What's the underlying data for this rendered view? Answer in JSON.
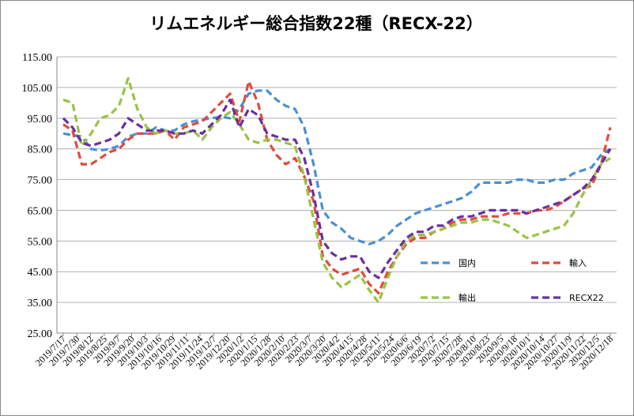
{
  "chart_data": {
    "type": "line",
    "title": "リムエネルギー総合指数22種（RECX-22）",
    "xlabel": "",
    "ylabel": "",
    "ylim": [
      25,
      115
    ],
    "yticks": [
      "25.00",
      "35.00",
      "45.00",
      "55.00",
      "65.00",
      "75.00",
      "85.00",
      "95.00",
      "105.00",
      "115.00"
    ],
    "xticks": [
      "2019/7/17",
      "2019/7/30",
      "2019/8/12",
      "2019/8/25",
      "2019/9/7",
      "2019/9/20",
      "2019/10/3",
      "2019/10/16",
      "2019/10/29",
      "2019/11/11",
      "2019/11/24",
      "2019/12/7",
      "2019/12/20",
      "2020/1/2",
      "2020/1/15",
      "2020/1/28",
      "2020/2/10",
      "2020/2/23",
      "2020/3/7",
      "2020/3/20",
      "2020/4/2",
      "2020/4/15",
      "2020/4/28",
      "2020/5/11",
      "2020/5/24",
      "2020/6/6",
      "2020/6/19",
      "2020/7/2",
      "2020/7/15",
      "2020/7/28",
      "2020/8/10",
      "2020/8/23",
      "2020/9/5",
      "2020/9/18",
      "2020/10/1",
      "2020/10/14",
      "2020/10/27",
      "2020/11/9",
      "2020/11/22",
      "2020/12/5",
      "2020/12/18"
    ],
    "grid": true,
    "legend_position": "lower-right",
    "series": [
      {
        "name": "国内",
        "color": "#4a8fd4",
        "values": [
          90,
          89.5,
          89,
          85,
          84.5,
          85,
          86,
          89,
          90,
          90,
          92,
          91,
          91,
          93,
          94,
          94.5,
          95,
          95.5,
          95,
          98,
          103,
          104,
          104,
          101,
          99,
          98,
          92,
          80,
          65,
          61,
          59,
          56,
          55,
          54,
          55,
          57,
          60,
          62,
          64,
          65,
          66,
          67,
          68,
          69,
          71,
          74,
          74,
          74,
          74,
          75,
          75,
          74,
          74,
          75,
          75,
          77,
          78,
          79,
          83,
          85
        ]
      },
      {
        "name": "輸入",
        "color": "#e04b3b",
        "values": [
          93,
          91,
          80,
          80,
          82,
          84,
          85,
          88,
          90,
          90,
          90,
          91,
          88,
          92,
          93,
          94,
          97,
          100,
          103,
          94,
          107,
          100,
          88,
          83,
          80,
          82,
          76,
          68,
          50,
          46,
          44,
          45,
          46,
          41,
          38,
          45,
          50,
          54,
          56,
          56,
          58,
          59,
          61,
          62,
          62,
          63,
          63,
          63,
          64,
          64,
          64,
          65,
          65,
          66,
          68,
          70,
          72,
          73,
          80,
          92
        ]
      },
      {
        "name": "輸出",
        "color": "#9ac244",
        "values": [
          101,
          100,
          86,
          90,
          95,
          96,
          99,
          108,
          98,
          92,
          90,
          91,
          90,
          90,
          91,
          88,
          92,
          95,
          97,
          93,
          88,
          87,
          88,
          88,
          87,
          86,
          76,
          62,
          48,
          43,
          40,
          42,
          44,
          39,
          35,
          43,
          50,
          55,
          57,
          57,
          58,
          59,
          60,
          61,
          61,
          62,
          62,
          61,
          60,
          58,
          56,
          57,
          58,
          59,
          60,
          64,
          70,
          75,
          80,
          82
        ]
      },
      {
        "name": "RECX22",
        "color": "#6a2fa0",
        "values": [
          95,
          92,
          87,
          86,
          87,
          88,
          90,
          95,
          93,
          91,
          91,
          91,
          90,
          90,
          91,
          90,
          93,
          96,
          101,
          92,
          98,
          96,
          90,
          89,
          88,
          88,
          82,
          70,
          55,
          51,
          49,
          50,
          50,
          45,
          43,
          48,
          52,
          56,
          58,
          58,
          60,
          60,
          62,
          63,
          63,
          64,
          65,
          65,
          65,
          65,
          64,
          65,
          66,
          67,
          68,
          70,
          72,
          75,
          80,
          85
        ]
      }
    ]
  }
}
